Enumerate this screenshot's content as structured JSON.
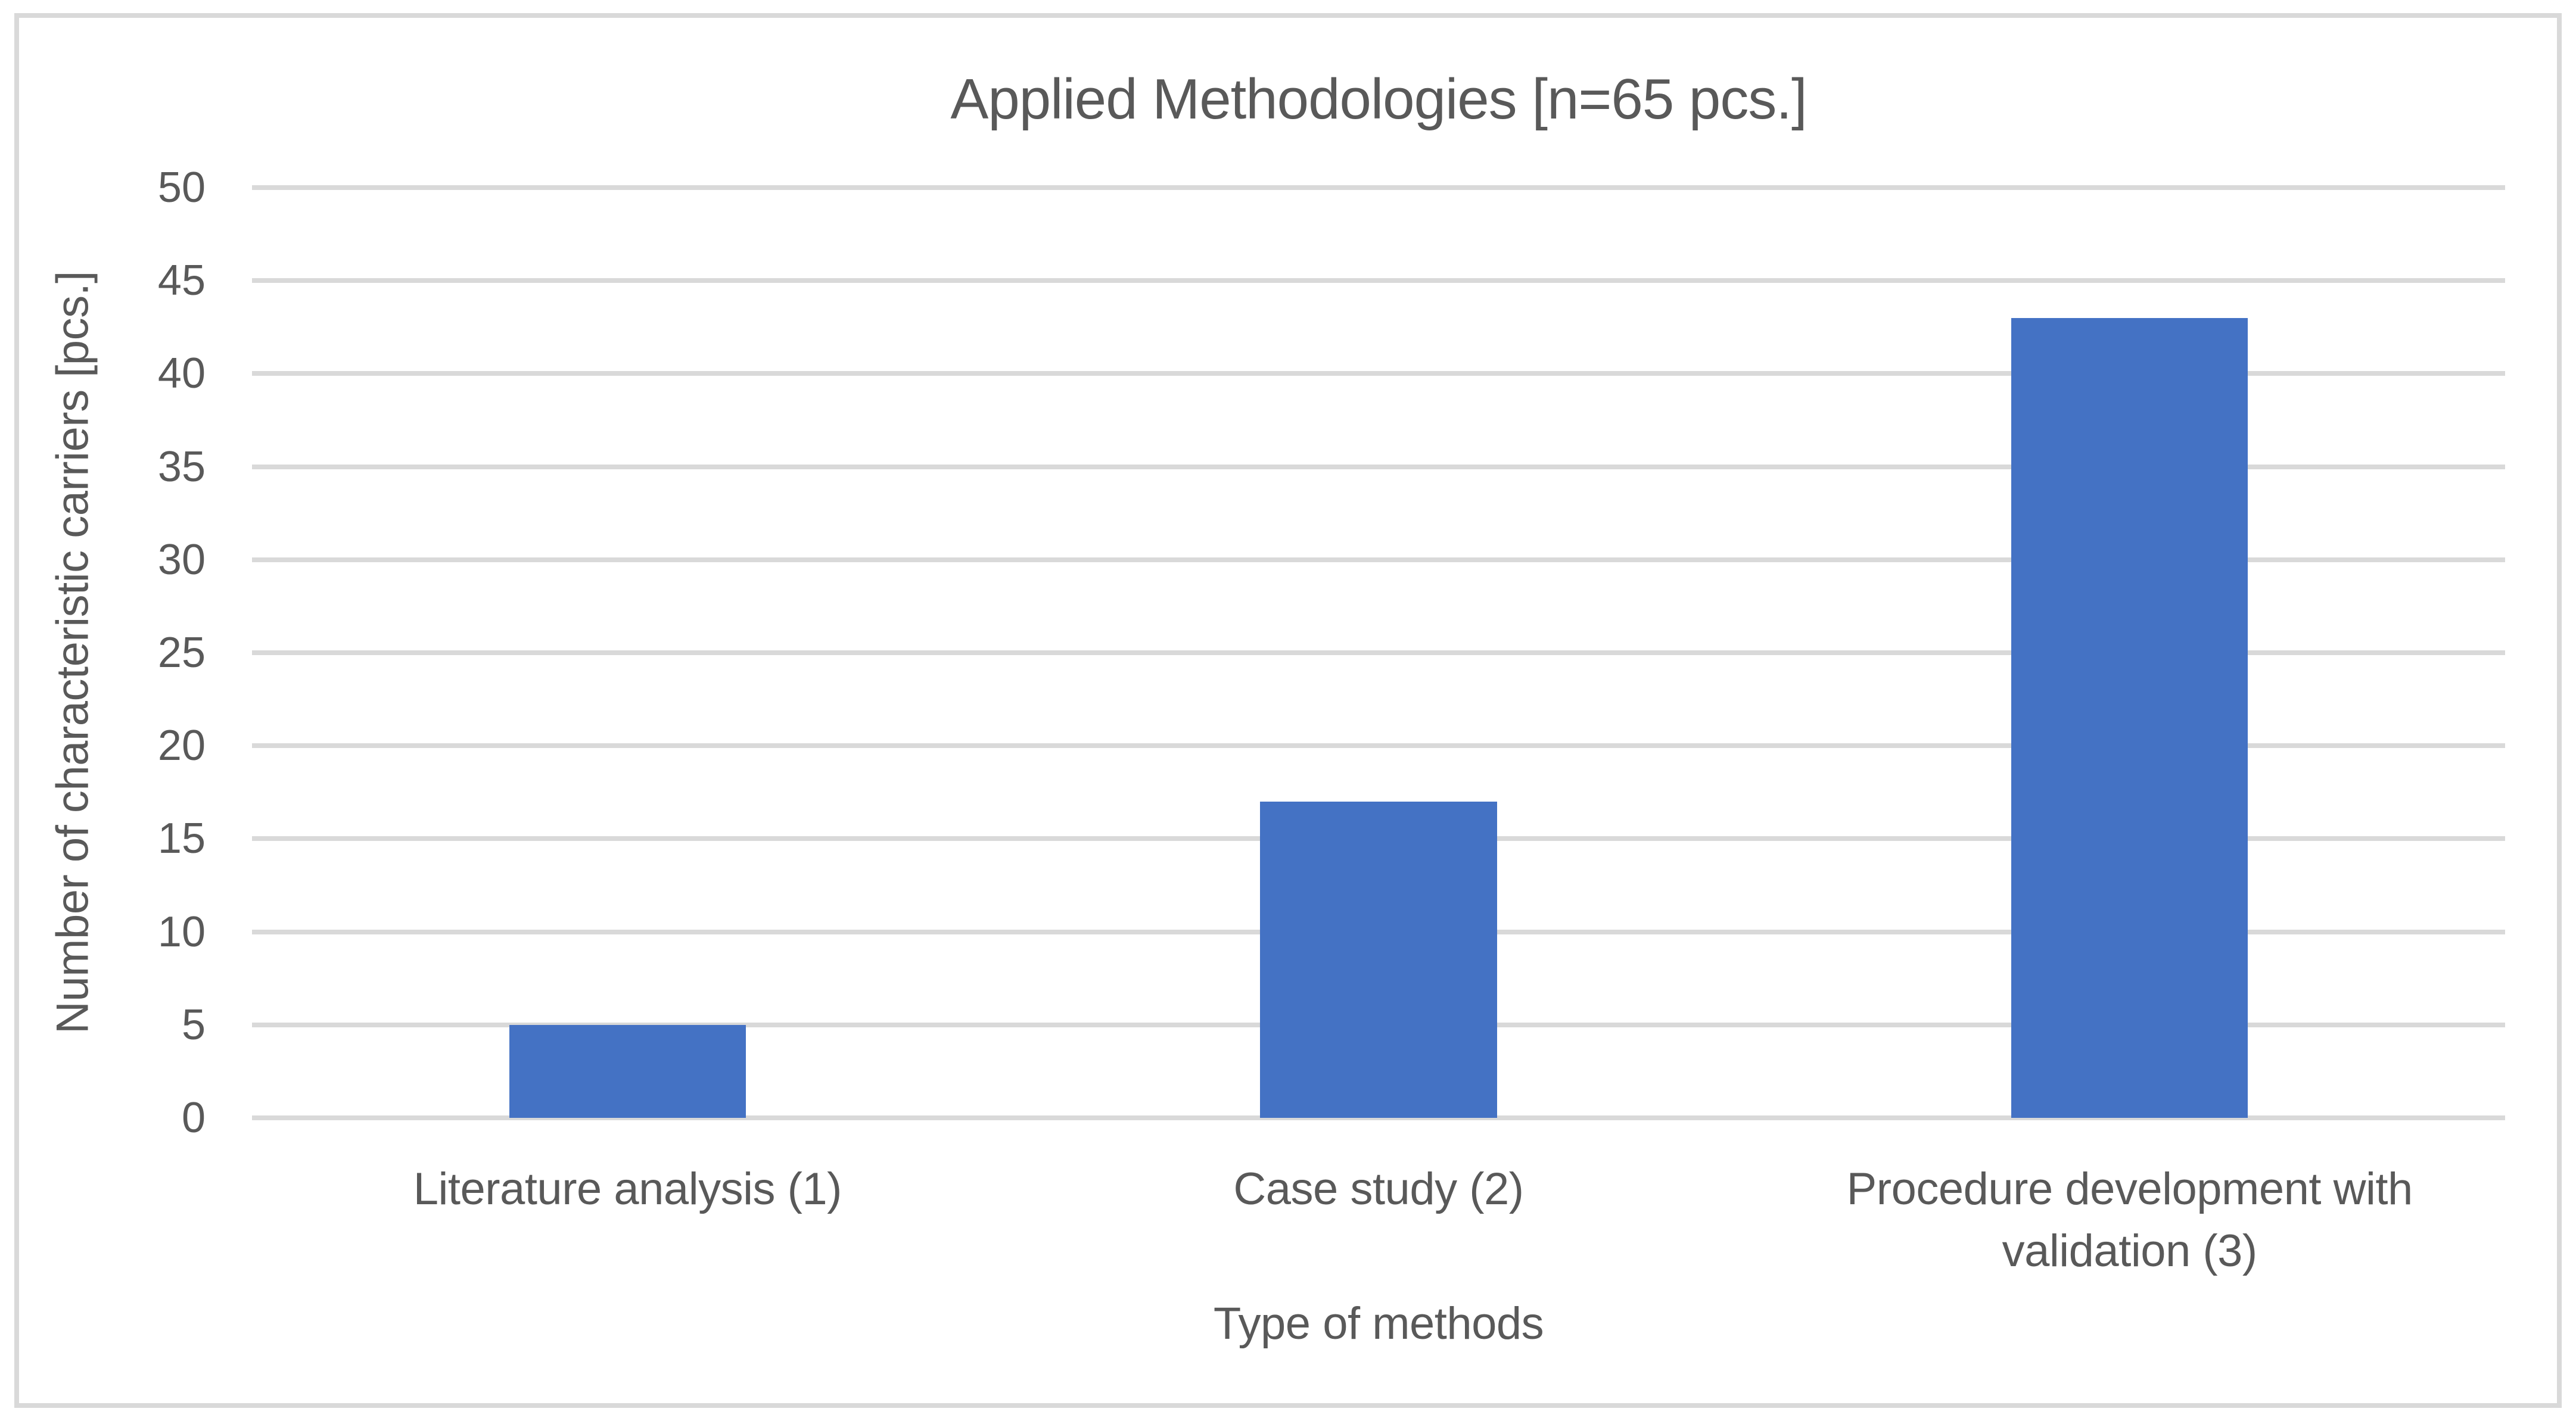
{
  "chart_data": {
    "type": "bar",
    "title": "Applied Methodologies [n=65 pcs.]",
    "categories": [
      "Literature analysis (1)",
      "Case study (2)",
      "Procedure development with validation (3)"
    ],
    "values": [
      5,
      17,
      43
    ],
    "xlabel": "Type of methods",
    "ylabel": "Number of characteristic carriers [pcs.]",
    "ylim": [
      0,
      50
    ],
    "ytick_step": 5,
    "grid": "horizontal",
    "legend": "none",
    "bar_gap_ratio": 0.315,
    "colors": {
      "bar": "#4472C4",
      "text": "#595959",
      "grid": "#D9D9D9",
      "frame": "#D9D9D9",
      "background": "#FFFFFF"
    }
  }
}
